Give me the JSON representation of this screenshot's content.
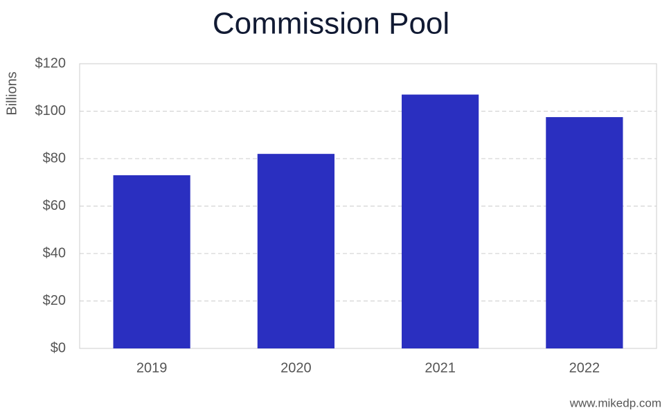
{
  "chart_data": {
    "type": "bar",
    "title": "Commission Pool",
    "y_label": "Billions",
    "categories": [
      "2019",
      "2020",
      "2021",
      "2022"
    ],
    "values": [
      73,
      82,
      107,
      97.5
    ],
    "color": "#2a2fc0",
    "ylim": [
      0,
      120
    ],
    "yticks": [
      {
        "value": 0,
        "label": "$0"
      },
      {
        "value": 20,
        "label": "$20"
      },
      {
        "value": 40,
        "label": "$40"
      },
      {
        "value": 60,
        "label": "$60"
      },
      {
        "value": 80,
        "label": "$80"
      },
      {
        "value": 100,
        "label": "$100"
      },
      {
        "value": 120,
        "label": "$120"
      }
    ],
    "grid": true,
    "source": "www.mikedp.com"
  }
}
